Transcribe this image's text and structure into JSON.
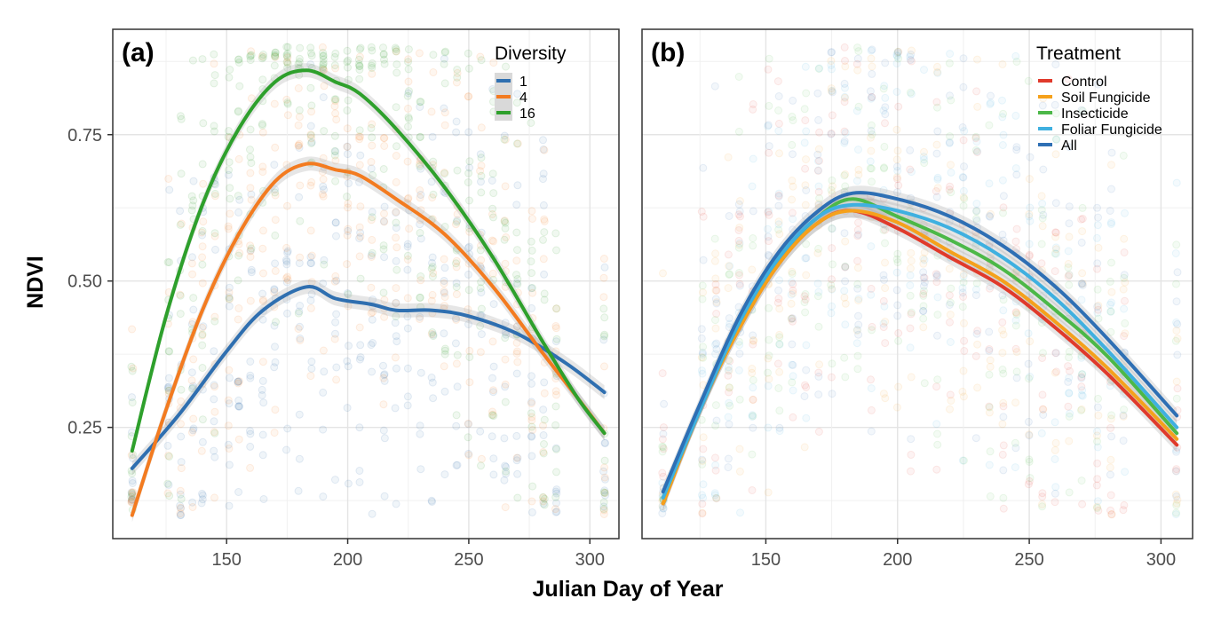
{
  "figure": {
    "xlabel": "Julian Day of Year",
    "ylabel": "NDVI"
  },
  "chart_data": [
    {
      "type": "scatter",
      "panel_label": "(a)",
      "xlim": [
        103,
        312
      ],
      "ylim": [
        0.06,
        0.93
      ],
      "x_ticks": [
        150,
        200,
        250,
        300
      ],
      "y_ticks": [
        0.25,
        0.5,
        0.75
      ],
      "y_tick_labels": [
        "0.25",
        "0.50",
        "0.75"
      ],
      "grid": true,
      "legend": {
        "title": "Diversity",
        "position": "top-right"
      },
      "observation_days": [
        111,
        126,
        131,
        136,
        140,
        145,
        151,
        155,
        160,
        165,
        170,
        175,
        180,
        185,
        190,
        195,
        200,
        205,
        210,
        215,
        220,
        225,
        230,
        235,
        240,
        245,
        250,
        255,
        260,
        265,
        270,
        276,
        281,
        286,
        306
      ],
      "series": [
        {
          "name": "1",
          "color": "#2f6fb0",
          "x": [
            111,
            130,
            150,
            165,
            183,
            195,
            210,
            220,
            235,
            250,
            270,
            290,
            306
          ],
          "y": [
            0.18,
            0.27,
            0.38,
            0.45,
            0.49,
            0.47,
            0.46,
            0.45,
            0.45,
            0.44,
            0.41,
            0.36,
            0.31
          ]
        },
        {
          "name": "4",
          "color": "#f37b20",
          "x": [
            111,
            125,
            140,
            155,
            170,
            183,
            195,
            205,
            220,
            240,
            260,
            280,
            295,
            306
          ],
          "y": [
            0.1,
            0.28,
            0.45,
            0.58,
            0.67,
            0.7,
            0.69,
            0.68,
            0.64,
            0.58,
            0.49,
            0.38,
            0.3,
            0.24
          ]
        },
        {
          "name": "16",
          "color": "#2ea02c",
          "x": [
            111,
            125,
            140,
            155,
            170,
            183,
            195,
            205,
            220,
            240,
            260,
            280,
            295,
            306
          ],
          "y": [
            0.21,
            0.44,
            0.63,
            0.76,
            0.84,
            0.86,
            0.84,
            0.82,
            0.76,
            0.66,
            0.54,
            0.4,
            0.3,
            0.24
          ]
        }
      ]
    },
    {
      "type": "scatter",
      "panel_label": "(b)",
      "xlim": [
        103,
        312
      ],
      "ylim": [
        0.06,
        0.93
      ],
      "x_ticks": [
        150,
        200,
        250,
        300
      ],
      "grid": true,
      "legend": {
        "title": "Treatment",
        "position": "top-right"
      },
      "observation_days": [
        111,
        126,
        131,
        136,
        140,
        145,
        151,
        155,
        160,
        165,
        170,
        175,
        180,
        185,
        190,
        195,
        200,
        205,
        210,
        215,
        220,
        225,
        230,
        235,
        240,
        245,
        250,
        255,
        260,
        265,
        270,
        276,
        281,
        286,
        306
      ],
      "series": [
        {
          "name": "Control",
          "color": "#e03a2b",
          "x": [
            111,
            125,
            140,
            155,
            170,
            183,
            200,
            220,
            240,
            260,
            280,
            306
          ],
          "y": [
            0.12,
            0.28,
            0.42,
            0.53,
            0.6,
            0.62,
            0.59,
            0.54,
            0.49,
            0.42,
            0.34,
            0.22
          ]
        },
        {
          "name": "Soil Fungicide",
          "color": "#f5a11c",
          "x": [
            111,
            125,
            140,
            155,
            170,
            183,
            200,
            220,
            240,
            260,
            280,
            306
          ],
          "y": [
            0.12,
            0.28,
            0.42,
            0.53,
            0.6,
            0.62,
            0.6,
            0.55,
            0.5,
            0.43,
            0.35,
            0.23
          ]
        },
        {
          "name": "Insecticide",
          "color": "#4cb848",
          "x": [
            111,
            125,
            140,
            155,
            170,
            183,
            200,
            220,
            240,
            260,
            280,
            306
          ],
          "y": [
            0.13,
            0.28,
            0.43,
            0.54,
            0.61,
            0.64,
            0.61,
            0.57,
            0.52,
            0.45,
            0.37,
            0.24
          ]
        },
        {
          "name": "Foliar Fungicide",
          "color": "#3fb0e0",
          "x": [
            111,
            125,
            140,
            155,
            170,
            183,
            200,
            220,
            240,
            260,
            280,
            306
          ],
          "y": [
            0.13,
            0.28,
            0.43,
            0.54,
            0.61,
            0.63,
            0.62,
            0.59,
            0.54,
            0.47,
            0.38,
            0.25
          ]
        },
        {
          "name": "All",
          "color": "#2e6fb4",
          "x": [
            111,
            125,
            140,
            155,
            170,
            183,
            200,
            220,
            240,
            260,
            280,
            306
          ],
          "y": [
            0.14,
            0.29,
            0.44,
            0.55,
            0.62,
            0.65,
            0.64,
            0.61,
            0.56,
            0.49,
            0.4,
            0.27
          ]
        }
      ]
    }
  ]
}
